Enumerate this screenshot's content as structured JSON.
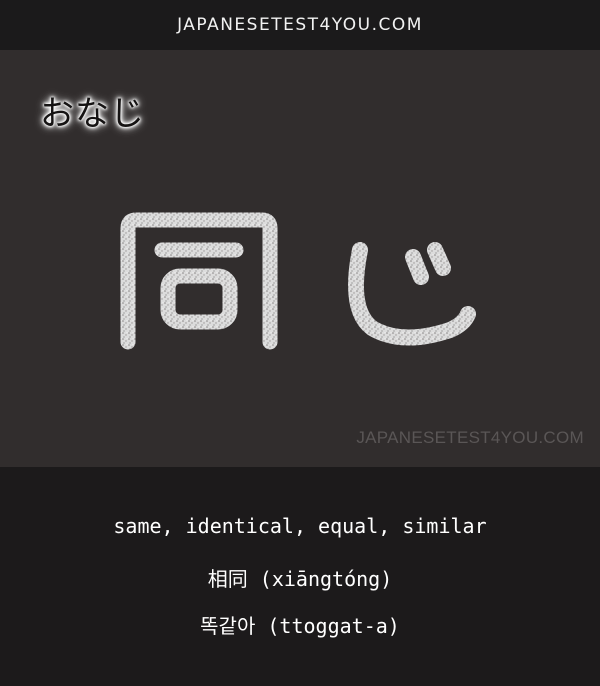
{
  "header": {
    "site_name": "JAPANESETEST4YOU.COM"
  },
  "card": {
    "reading": "おなじ",
    "word": "同じ",
    "watermark": "JAPANESETEST4YOU.COM"
  },
  "meanings": {
    "english": "same, identical, equal, similar",
    "chinese": "相同 (xiāngtóng)",
    "korean": "똑같아 (ttoggat-a)"
  },
  "colors": {
    "header_bg": "#1b1a1b",
    "card_bg": "#312d2d",
    "footer_bg": "#1c1a1b",
    "glyph": "#e9e9e9",
    "watermark": "#5a5656"
  }
}
